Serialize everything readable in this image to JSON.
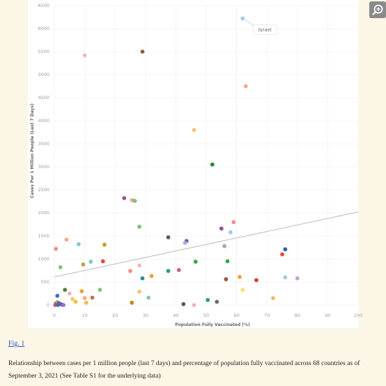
{
  "chart_data": {
    "type": "scatter",
    "xlabel": "Population Fully Vaccinated (%)",
    "ylabel": "Cases Per 1 Million People (Last 7 Days)",
    "xlim": [
      0,
      100
    ],
    "ylim": [
      0,
      6500
    ],
    "x_ticks": [
      "0",
      "10",
      "20",
      "30",
      "40",
      "50",
      "60",
      "70",
      "80",
      "90",
      "100"
    ],
    "y_ticks": [
      "0",
      "500",
      "1000",
      "1500",
      "2000",
      "2500",
      "3000",
      "3500",
      "4000",
      "4500",
      "5000",
      "5500",
      "6000",
      "6500"
    ],
    "trendline": {
      "x": [
        0,
        100
      ],
      "y": [
        610,
        2020
      ]
    },
    "annotation": {
      "text": "Israel",
      "x": 62,
      "y": 6220
    },
    "points": [
      {
        "x": 62,
        "y": 6220,
        "color": "#9ec8e8"
      },
      {
        "x": 29,
        "y": 5500,
        "color": "#8b5a44"
      },
      {
        "x": 10,
        "y": 5420,
        "color": "#f4b3c2"
      },
      {
        "x": 63,
        "y": 4750,
        "color": "#f0a88a"
      },
      {
        "x": 46,
        "y": 3800,
        "color": "#f7c470"
      },
      {
        "x": 52,
        "y": 3050,
        "color": "#2f8a3e"
      },
      {
        "x": 23,
        "y": 2320,
        "color": "#9a4e8c"
      },
      {
        "x": 25.5,
        "y": 2280,
        "color": "#f4b3c2"
      },
      {
        "x": 26,
        "y": 2270,
        "color": "#d9a878"
      },
      {
        "x": 26.5,
        "y": 2260,
        "color": "#7cc37a"
      },
      {
        "x": 59,
        "y": 1800,
        "color": "#f08c8c"
      },
      {
        "x": 28,
        "y": 1700,
        "color": "#7cc37a"
      },
      {
        "x": 55,
        "y": 1660,
        "color": "#9a4e8c"
      },
      {
        "x": 58,
        "y": 1580,
        "color": "#9ec8e8"
      },
      {
        "x": 37.5,
        "y": 1470,
        "color": "#5a5a5a"
      },
      {
        "x": 4,
        "y": 1420,
        "color": "#f0a888"
      },
      {
        "x": 43.5,
        "y": 1390,
        "color": "#3e6fbe"
      },
      {
        "x": 43,
        "y": 1350,
        "color": "#c8a0d0"
      },
      {
        "x": 8,
        "y": 1320,
        "color": "#7ec8c0"
      },
      {
        "x": 16.5,
        "y": 1310,
        "color": "#d4952e"
      },
      {
        "x": 56,
        "y": 1280,
        "color": "#a8a8a8"
      },
      {
        "x": 0.5,
        "y": 1220,
        "color": "#f08c8c"
      },
      {
        "x": 76,
        "y": 1210,
        "color": "#2e5fa8"
      },
      {
        "x": 75,
        "y": 1100,
        "color": "#e84a3a"
      },
      {
        "x": 16,
        "y": 950,
        "color": "#e84a3a"
      },
      {
        "x": 12,
        "y": 940,
        "color": "#7ec8c0"
      },
      {
        "x": 57,
        "y": 950,
        "color": "#3fa34d"
      },
      {
        "x": 46.5,
        "y": 940,
        "color": "#3fa34d"
      },
      {
        "x": 9.5,
        "y": 880,
        "color": "#b8a040"
      },
      {
        "x": 28,
        "y": 860,
        "color": "#f4b3c2"
      },
      {
        "x": 2,
        "y": 820,
        "color": "#7cc37a"
      },
      {
        "x": 25,
        "y": 740,
        "color": "#f08c8c"
      },
      {
        "x": 37.5,
        "y": 740,
        "color": "#2a9a8a"
      },
      {
        "x": 41,
        "y": 760,
        "color": "#d06070"
      },
      {
        "x": 32,
        "y": 630,
        "color": "#f0a030"
      },
      {
        "x": 29,
        "y": 580,
        "color": "#2a8a9a"
      },
      {
        "x": 61,
        "y": 610,
        "color": "#f0a030"
      },
      {
        "x": 76,
        "y": 600,
        "color": "#9ec8e8"
      },
      {
        "x": 80,
        "y": 580,
        "color": "#c8a0d0"
      },
      {
        "x": 56.5,
        "y": 560,
        "color": "#8b5a44"
      },
      {
        "x": 66.5,
        "y": 540,
        "color": "#d63a3a"
      },
      {
        "x": 3.5,
        "y": 330,
        "color": "#5a7a3a"
      },
      {
        "x": 5,
        "y": 250,
        "color": "#f4b3c2"
      },
      {
        "x": 9,
        "y": 300,
        "color": "#f0a030"
      },
      {
        "x": 15,
        "y": 330,
        "color": "#7cc37a"
      },
      {
        "x": 28,
        "y": 290,
        "color": "#f7c470"
      },
      {
        "x": 62,
        "y": 330,
        "color": "#f4e070"
      },
      {
        "x": 1,
        "y": 200,
        "color": "#3e6fbe"
      },
      {
        "x": 6,
        "y": 130,
        "color": "#f7c470"
      },
      {
        "x": 10,
        "y": 150,
        "color": "#f0a888"
      },
      {
        "x": 12.5,
        "y": 160,
        "color": "#c07050"
      },
      {
        "x": 31,
        "y": 160,
        "color": "#7ec8c0"
      },
      {
        "x": 72,
        "y": 150,
        "color": "#f0b870"
      },
      {
        "x": 50.5,
        "y": 110,
        "color": "#2a9a8a"
      },
      {
        "x": 53.5,
        "y": 70,
        "color": "#6a6a6a"
      },
      {
        "x": 7,
        "y": 70,
        "color": "#f0c040"
      },
      {
        "x": 10.5,
        "y": 50,
        "color": "#f0c040"
      },
      {
        "x": 25.5,
        "y": 50,
        "color": "#b89020"
      },
      {
        "x": 42.5,
        "y": 20,
        "color": "#5a5a5a"
      },
      {
        "x": 46,
        "y": 0,
        "color": "#f4b3c2"
      },
      {
        "x": 0.5,
        "y": 30,
        "color": "#3e6fbe"
      },
      {
        "x": 1,
        "y": 60,
        "color": "#d4952e"
      },
      {
        "x": 1.5,
        "y": 40,
        "color": "#3e6fbe"
      },
      {
        "x": 2,
        "y": 20,
        "color": "#6a5ab0"
      },
      {
        "x": 2.5,
        "y": 10,
        "color": "#5a5ad0"
      },
      {
        "x": 3,
        "y": 0,
        "color": "#a06ad0"
      },
      {
        "x": 0.3,
        "y": 0,
        "color": "#d04a8a"
      },
      {
        "x": 1.2,
        "y": 0,
        "color": "#3a7a7a"
      }
    ]
  },
  "figure": {
    "link_label": "Fig. 1",
    "caption": "Relationship between cases per 1 million people (last 7 days) and percentage of population fully vaccinated across 68 countries as of September 3, 2021 (See Table S1 for the underlying data)"
  },
  "zoom_icon": "zoom-in-magnifier-icon"
}
